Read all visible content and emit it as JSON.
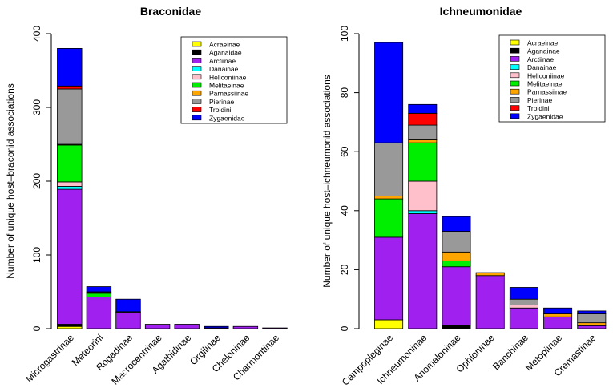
{
  "colors": {
    "Acraeinae": "#FFFF00",
    "Aganaidae": "#000000",
    "Arctiinae": "#A020F0",
    "Danainae": "#00FFFF",
    "Heliconiinae": "#FFC0CB",
    "Melitaeinae": "#00EE00",
    "Parnassiinae": "#FFA500",
    "Pierinae": "#999999",
    "Troidini": "#FF0000",
    "Zygaenidae": "#0000FF"
  },
  "chart_data": [
    {
      "type": "bar",
      "stacked": true,
      "title": "Braconidae",
      "xlabel": "",
      "ylabel": "Number of unique host–braconid associations",
      "ylim": [
        0,
        400
      ],
      "yticks": [
        0,
        100,
        200,
        300,
        400
      ],
      "legend_position": "top-right",
      "legend": [
        "Acraeinae",
        "Aganaidae",
        "Arctiinae",
        "Danainae",
        "Heliconiinae",
        "Melitaeinae",
        "Parnassiinae",
        "Pierinae",
        "Troidini",
        "Zygaenidae"
      ],
      "categories": [
        "Microgastrinae",
        "Meteorini",
        "Rogadinae",
        "Macrocentrinae",
        "Agathidinae",
        "Orgilinae",
        "Cheloninae",
        "Charmontinae"
      ],
      "series": [
        {
          "name": "Acraeinae",
          "values": [
            3,
            0,
            0,
            0,
            0,
            0,
            0,
            0
          ]
        },
        {
          "name": "Aganaidae",
          "values": [
            3,
            0,
            0,
            0,
            0,
            0,
            0,
            0
          ]
        },
        {
          "name": "Arctiinae",
          "values": [
            183,
            43,
            22,
            5,
            6,
            1,
            3,
            1
          ]
        },
        {
          "name": "Danainae",
          "values": [
            4,
            0,
            0,
            0,
            0,
            0,
            0,
            0
          ]
        },
        {
          "name": "Heliconiinae",
          "values": [
            6,
            0,
            0,
            0,
            0,
            0,
            0,
            0
          ]
        },
        {
          "name": "Melitaeinae",
          "values": [
            50,
            5,
            0,
            0,
            0,
            0,
            0,
            0
          ]
        },
        {
          "name": "Parnassiinae",
          "values": [
            1,
            1,
            0,
            0,
            0,
            0,
            0,
            0
          ]
        },
        {
          "name": "Pierinae",
          "values": [
            75,
            1,
            1,
            1,
            0,
            0,
            0,
            0
          ]
        },
        {
          "name": "Troidini",
          "values": [
            4,
            0,
            0,
            0,
            0,
            0,
            0,
            0
          ]
        },
        {
          "name": "Zygaenidae",
          "values": [
            51,
            7,
            17,
            0,
            0,
            2,
            0,
            0
          ]
        }
      ]
    },
    {
      "type": "bar",
      "stacked": true,
      "title": "Ichneumonidae",
      "xlabel": "",
      "ylabel": "Number of unique host–ichneumonid associations",
      "ylim": [
        0,
        100
      ],
      "yticks": [
        0,
        20,
        40,
        60,
        80,
        100
      ],
      "legend_position": "top-right",
      "legend": [
        "Acraeinae",
        "Aganainae",
        "Arctiinae",
        "Danainae",
        "Heliconiinae",
        "Melitaeinae",
        "Parnassiinae",
        "Pierinae",
        "Troidini",
        "Zygaenidae"
      ],
      "categories": [
        "Campopleginae",
        "Ichneumoninae",
        "Anomaloninae",
        "Ophioninae",
        "Banchinae",
        "Metopiinae",
        "Cremastinae"
      ],
      "series": [
        {
          "name": "Acraeinae",
          "values": [
            3,
            0,
            0,
            0,
            0,
            0,
            0
          ]
        },
        {
          "name": "Aganainae",
          "values": [
            0,
            0,
            1,
            0,
            0,
            0,
            0
          ]
        },
        {
          "name": "Arctiinae",
          "values": [
            28,
            39,
            20,
            18,
            7,
            4,
            1
          ]
        },
        {
          "name": "Danainae",
          "values": [
            0,
            1,
            0,
            0,
            0,
            0,
            0
          ]
        },
        {
          "name": "Heliconiinae",
          "values": [
            0,
            10,
            0,
            0,
            1,
            0,
            0
          ]
        },
        {
          "name": "Melitaeinae",
          "values": [
            13,
            13,
            2,
            0,
            0,
            0,
            0
          ]
        },
        {
          "name": "Parnassiinae",
          "values": [
            1,
            1,
            3,
            1,
            0,
            1,
            1
          ]
        },
        {
          "name": "Pierinae",
          "values": [
            18,
            5,
            7,
            0,
            2,
            0,
            3
          ]
        },
        {
          "name": "Troidini",
          "values": [
            0,
            4,
            0,
            0,
            0,
            0,
            0
          ]
        },
        {
          "name": "Zygaenidae",
          "values": [
            34,
            3,
            5,
            0,
            4,
            2,
            1
          ]
        }
      ]
    }
  ]
}
